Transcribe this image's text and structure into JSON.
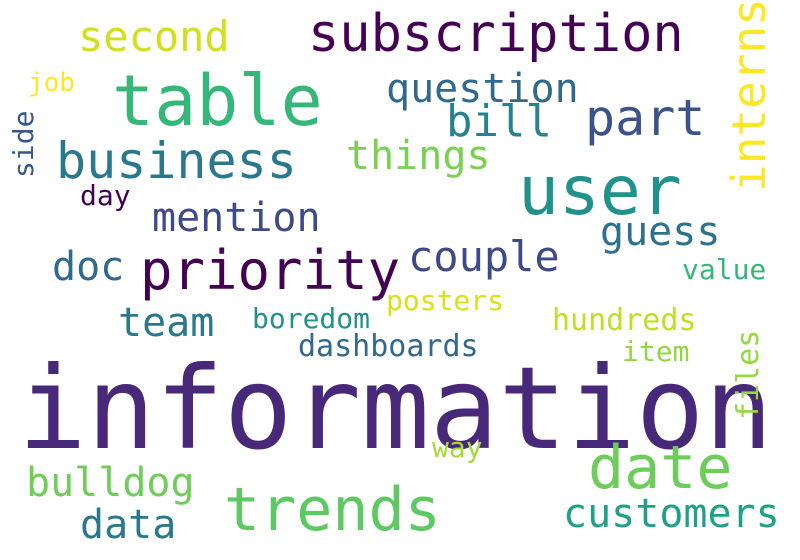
{
  "words": [
    {
      "text": "information",
      "color": "#482878"
    },
    {
      "text": "table",
      "color": "#35b779"
    },
    {
      "text": "subscription",
      "color": "#440154"
    },
    {
      "text": "user",
      "color": "#21918c"
    },
    {
      "text": "priority",
      "color": "#440154"
    },
    {
      "text": "business",
      "color": "#2a788e"
    },
    {
      "text": "date",
      "color": "#6ccd5a"
    },
    {
      "text": "trends",
      "color": "#5ec962"
    },
    {
      "text": "part",
      "color": "#3b528b"
    },
    {
      "text": "second",
      "color": "#d0e11c"
    },
    {
      "text": "question",
      "color": "#31688e"
    },
    {
      "text": "interns",
      "color": "#fde725"
    },
    {
      "text": "mention",
      "color": "#3e4a89"
    },
    {
      "text": "things",
      "color": "#7ad151"
    },
    {
      "text": "bill",
      "color": "#26828e"
    },
    {
      "text": "guess",
      "color": "#2c728e"
    },
    {
      "text": "couple",
      "color": "#3e4989"
    },
    {
      "text": "doc",
      "color": "#31688e"
    },
    {
      "text": "team",
      "color": "#2a788e"
    },
    {
      "text": "customers",
      "color": "#1fa187"
    },
    {
      "text": "bulldog",
      "color": "#6ece58"
    },
    {
      "text": "data",
      "color": "#2a788e"
    },
    {
      "text": "dashboards",
      "color": "#31688e"
    },
    {
      "text": "boredom",
      "color": "#21918c"
    },
    {
      "text": "posters",
      "color": "#d8e219"
    },
    {
      "text": "hundreds",
      "color": "#bddf26"
    },
    {
      "text": "value",
      "color": "#35b779"
    },
    {
      "text": "item",
      "color": "#8fd744"
    },
    {
      "text": "files",
      "color": "#95d840"
    },
    {
      "text": "way",
      "color": "#a5db36"
    },
    {
      "text": "day",
      "color": "#440154"
    },
    {
      "text": "job",
      "color": "#fde725"
    },
    {
      "text": "side",
      "color": "#39568c"
    }
  ]
}
